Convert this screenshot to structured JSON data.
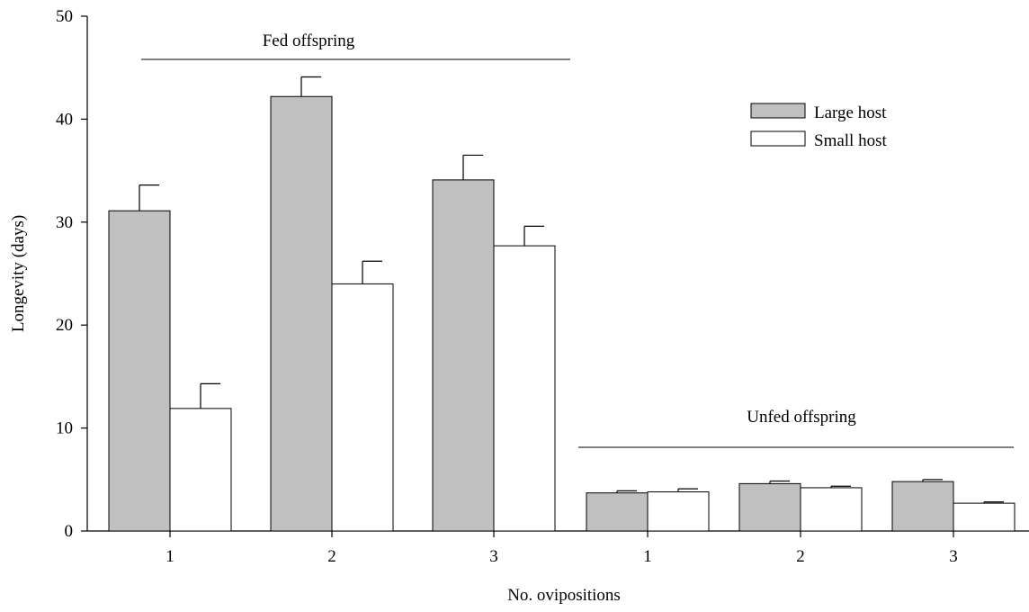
{
  "chart_data": {
    "type": "bar",
    "xlabel": "No. ovipositions",
    "ylabel": "Longevity (days)",
    "ylim": [
      0,
      50
    ],
    "yticks": [
      "0",
      "10",
      "20",
      "30",
      "40",
      "50"
    ],
    "categories": [
      "1",
      "2",
      "3",
      "1",
      "2",
      "3"
    ],
    "groups": [
      {
        "label": "Fed offspring",
        "categories": [
          "1",
          "2",
          "3"
        ]
      },
      {
        "label": "Unfed offspring",
        "categories": [
          "1",
          "2",
          "3"
        ]
      }
    ],
    "series": [
      {
        "name": "Large host",
        "color": "#c0c0c0",
        "values": [
          31.1,
          42.2,
          34.1,
          3.7,
          4.6,
          4.8
        ],
        "errors": [
          2.5,
          1.9,
          2.4,
          0.2,
          0.25,
          0.2
        ]
      },
      {
        "name": "Small host",
        "color": "#ffffff",
        "values": [
          11.9,
          24.0,
          27.7,
          3.8,
          4.2,
          2.7
        ],
        "errors": [
          2.4,
          2.2,
          1.9,
          0.3,
          0.15,
          0.12
        ]
      }
    ],
    "legend_position": "top-right",
    "grid": false
  }
}
